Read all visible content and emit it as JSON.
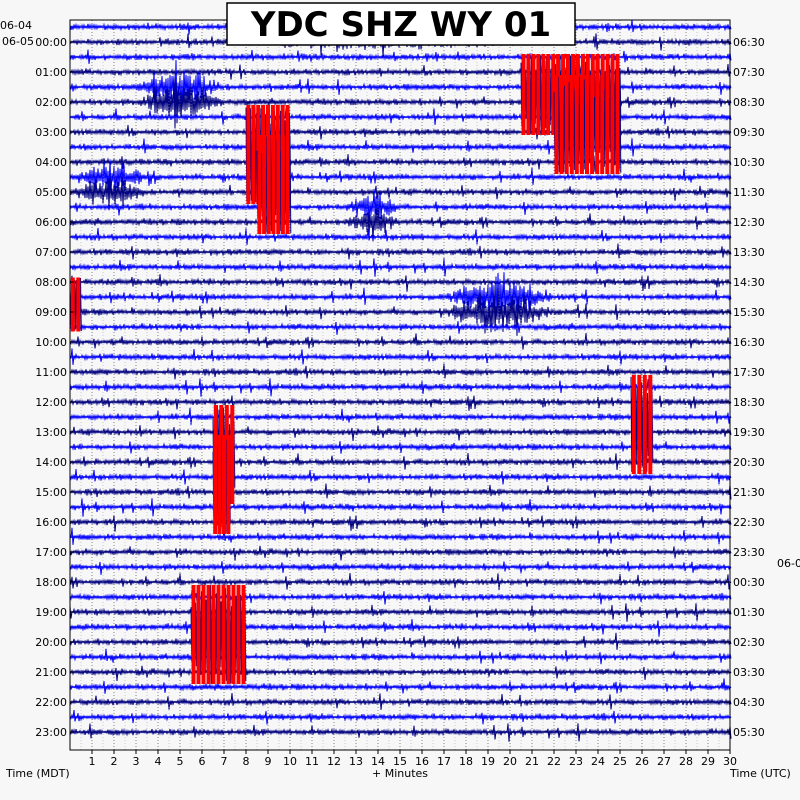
{
  "chart_data": {
    "type": "line",
    "title": "YDC SHZ WY 01",
    "xlabel": "+ Minutes",
    "left_axis_label": "Time (MDT)",
    "right_axis_label": "Time (UTC)",
    "left_date_labels": [
      "06-04",
      "06-05"
    ],
    "right_date_label": "06-0",
    "x_ticks": [
      1,
      2,
      3,
      4,
      5,
      6,
      7,
      8,
      9,
      10,
      11,
      12,
      13,
      14,
      15,
      16,
      17,
      18,
      19,
      20,
      21,
      22,
      23,
      24,
      25,
      26,
      27,
      28,
      29,
      30
    ],
    "xlim": [
      0,
      30
    ],
    "grid": true,
    "grid_minor_step_minutes": 0.5,
    "left_hour_labels": [
      "00:00",
      "01:00",
      "02:00",
      "03:00",
      "04:00",
      "05:00",
      "06:00",
      "07:00",
      "08:00",
      "09:00",
      "10:00",
      "11:00",
      "12:00",
      "13:00",
      "14:00",
      "15:00",
      "16:00",
      "17:00",
      "18:00",
      "19:00",
      "20:00",
      "21:00",
      "22:00",
      "23:00"
    ],
    "right_hour_labels": [
      "06:30",
      "07:30",
      "08:30",
      "09:30",
      "10:30",
      "11:30",
      "12:30",
      "13:30",
      "14:30",
      "15:30",
      "16:30",
      "17:30",
      "18:30",
      "19:30",
      "20:30",
      "21:30",
      "22:30",
      "23:30",
      "00:30",
      "01:30",
      "02:30",
      "03:30",
      "04:30",
      "05:30"
    ],
    "trace_rows_per_hour": 2,
    "trace_colors": [
      "#0000ff",
      "#000080"
    ],
    "clip_color": "#ff0000",
    "events": [
      {
        "hour": 0,
        "start_min": 7,
        "end_min": 20,
        "amplitude": 0.35,
        "clipped": false
      },
      {
        "hour": 2,
        "start_min": 3.5,
        "end_min": 6.5,
        "amplitude": 1.3,
        "clipped": false
      },
      {
        "hour": 2,
        "start_min": 20.5,
        "end_min": 25,
        "amplitude": 1.8,
        "clipped": true
      },
      {
        "hour": 3,
        "start_min": 22,
        "end_min": 25,
        "amplitude": 2.2,
        "clipped": true
      },
      {
        "hour": 4,
        "start_min": 8,
        "end_min": 10,
        "amplitude": 2.2,
        "clipped": true
      },
      {
        "hour": 5,
        "start_min": 8.5,
        "end_min": 10,
        "amplitude": 2.2,
        "clipped": true
      },
      {
        "hour": 5,
        "start_min": 0.5,
        "end_min": 3,
        "amplitude": 0.9,
        "clipped": false
      },
      {
        "hour": 6,
        "start_min": 13,
        "end_min": 14.5,
        "amplitude": 0.8,
        "clipped": false
      },
      {
        "hour": 9,
        "start_min": 17.5,
        "end_min": 21.5,
        "amplitude": 1.4,
        "clipped": false
      },
      {
        "hour": 9,
        "start_min": 0,
        "end_min": 0.5,
        "amplitude": 1.2,
        "clipped": true
      },
      {
        "hour": 13,
        "start_min": 25.5,
        "end_min": 26.5,
        "amplitude": 2.2,
        "clipped": true
      },
      {
        "hour": 14,
        "start_min": 6.5,
        "end_min": 7.5,
        "amplitude": 2.2,
        "clipped": true
      },
      {
        "hour": 15,
        "start_min": 6.5,
        "end_min": 7.3,
        "amplitude": 2.2,
        "clipped": true
      },
      {
        "hour": 20,
        "start_min": 5.5,
        "end_min": 8,
        "amplitude": 2.2,
        "clipped": true
      }
    ]
  }
}
